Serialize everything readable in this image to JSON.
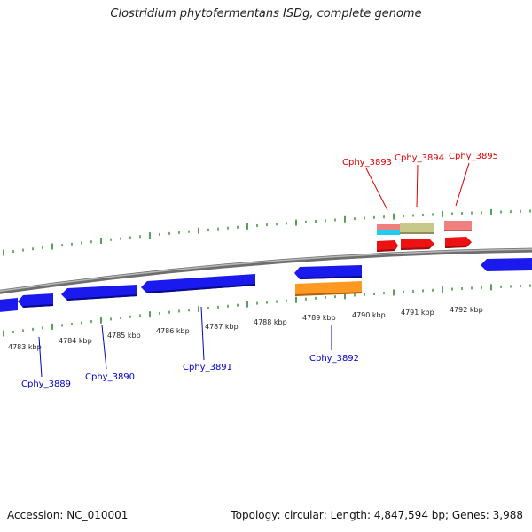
{
  "title": "Clostridium phytofermentans ISDg, complete genome",
  "footer": {
    "accession": "Accession: NC_010001",
    "topology": "Topology: circular; Length: 4,847,594 bp; Genes: 3,988"
  },
  "colors": {
    "backbone": "#8a8a8a",
    "tick": "#2e8b2e",
    "forward_gene": "#ee1111",
    "reverse_gene": "#1a1aee",
    "rna_pink": "#f08080",
    "rna_cyan": "#22ccee",
    "olive": "#c8c88a",
    "orange": "#ff9922",
    "label_forward": "#dd0000",
    "label_reverse": "#0000cc"
  },
  "kbp_labels": [
    "4783 kbp",
    "4784 kbp",
    "4785 kbp",
    "4786 kbp",
    "4787 kbp",
    "4788 kbp",
    "4789 kbp",
    "4790 kbp",
    "4791 kbp",
    "4792 kbp"
  ],
  "gene_labels_forward": [
    "Cphy_3893",
    "Cphy_3894",
    "Cphy_3895"
  ],
  "gene_labels_reverse": [
    "Cphy_3889",
    "Cphy_3890",
    "Cphy_3891",
    "Cphy_3892"
  ]
}
